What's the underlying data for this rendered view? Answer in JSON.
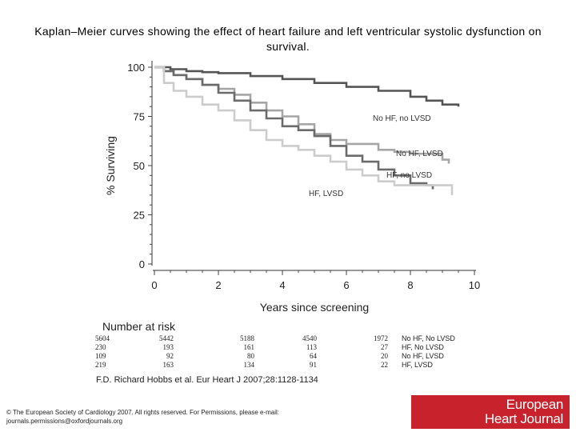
{
  "title": "Kaplan–Meier curves showing the effect of heart failure and left ventricular systolic dysfunction on survival.",
  "chart_data": {
    "type": "line",
    "title": "Kaplan–Meier curves showing the effect of heart failure and left ventricular systolic dysfunction on survival.",
    "xlabel": "Years since screening",
    "ylabel": "% Surviving",
    "xlim": [
      0,
      10
    ],
    "ylim": [
      0,
      100
    ],
    "x_ticks": [
      0,
      2,
      4,
      6,
      8,
      10
    ],
    "y_ticks": [
      0,
      25,
      50,
      75,
      100
    ],
    "grid": false,
    "series": [
      {
        "name": "No HF, no LVSD",
        "color": "#555555",
        "points": [
          [
            0,
            100
          ],
          [
            0.5,
            99
          ],
          [
            1,
            98
          ],
          [
            1.5,
            97.5
          ],
          [
            2,
            97
          ],
          [
            3,
            95.5
          ],
          [
            4,
            94
          ],
          [
            5,
            92
          ],
          [
            6,
            90
          ],
          [
            7,
            88
          ],
          [
            8,
            85
          ],
          [
            8.5,
            83
          ],
          [
            9,
            81
          ],
          [
            9.5,
            80
          ]
        ]
      },
      {
        "name": "No HF, LVSD",
        "color": "#a6a6a6",
        "points": [
          [
            0,
            100
          ],
          [
            0.3,
            98
          ],
          [
            0.6,
            96
          ],
          [
            1,
            94
          ],
          [
            1.5,
            91
          ],
          [
            2,
            89
          ],
          [
            2.5,
            86
          ],
          [
            3,
            82
          ],
          [
            3.5,
            78
          ],
          [
            4,
            75
          ],
          [
            4.5,
            71
          ],
          [
            5,
            66
          ],
          [
            5.5,
            63
          ],
          [
            6,
            61
          ],
          [
            6.5,
            61
          ],
          [
            7,
            58
          ],
          [
            7.5,
            57
          ],
          [
            8,
            56
          ],
          [
            8.5,
            56
          ],
          [
            9,
            53
          ],
          [
            9.2,
            51
          ]
        ]
      },
      {
        "name": "HF, no LVSD",
        "color": "#6b6b6b",
        "points": [
          [
            0,
            100
          ],
          [
            0.3,
            98
          ],
          [
            0.6,
            96
          ],
          [
            1,
            94
          ],
          [
            1.5,
            91
          ],
          [
            2,
            87
          ],
          [
            2.5,
            83
          ],
          [
            3,
            78
          ],
          [
            3.5,
            74
          ],
          [
            4,
            70
          ],
          [
            4.5,
            68
          ],
          [
            5,
            65
          ],
          [
            5.5,
            60
          ],
          [
            6,
            55
          ],
          [
            6.5,
            52
          ],
          [
            7,
            48
          ],
          [
            7.5,
            45
          ],
          [
            8,
            41
          ],
          [
            8.5,
            40
          ],
          [
            8.7,
            38
          ]
        ]
      },
      {
        "name": "HF, LVSD",
        "color": "#cccccc",
        "points": [
          [
            0,
            100
          ],
          [
            0.3,
            92
          ],
          [
            0.6,
            88
          ],
          [
            1,
            85
          ],
          [
            1.5,
            81
          ],
          [
            2,
            78
          ],
          [
            2.5,
            73
          ],
          [
            3,
            68
          ],
          [
            3.5,
            63
          ],
          [
            4,
            60
          ],
          [
            4.5,
            58
          ],
          [
            5,
            55
          ],
          [
            5.5,
            52
          ],
          [
            6,
            48
          ],
          [
            6.5,
            45
          ],
          [
            7,
            42
          ],
          [
            7.5,
            40
          ],
          [
            8,
            40
          ],
          [
            8.5,
            40
          ],
          [
            9,
            40
          ],
          [
            9.3,
            35
          ]
        ]
      }
    ],
    "curve_labels": [
      "No HF, no LVSD",
      "No HF, LVSD",
      "HF, no LVSD",
      "HF, LVSD"
    ]
  },
  "risk_table": {
    "title": "Number at risk",
    "rows": [
      {
        "group": "No HF, No LVSD",
        "values": [
          "5604",
          "5442",
          "5188",
          "4540",
          "1972"
        ]
      },
      {
        "group": "HF, No LVSD",
        "values": [
          "230",
          "193",
          "161",
          "113",
          "27"
        ]
      },
      {
        "group": "No HF, LVSD",
        "values": [
          "109",
          "92",
          "80",
          "64",
          "20"
        ]
      },
      {
        "group": "HF, LVSD",
        "values": [
          "219",
          "163",
          "134",
          "91",
          "22"
        ]
      }
    ]
  },
  "citation": "F.D. Richard Hobbs et al. Eur Heart J 2007;28:1128-1134",
  "copyright": "© The European Society of Cardiology 2007. All rights reserved. For Permissions, please e-mail: journals.permissions@oxfordjournals.org",
  "logo": {
    "line1": "European",
    "line2": "Heart Journal",
    "color": "#c8232c"
  }
}
